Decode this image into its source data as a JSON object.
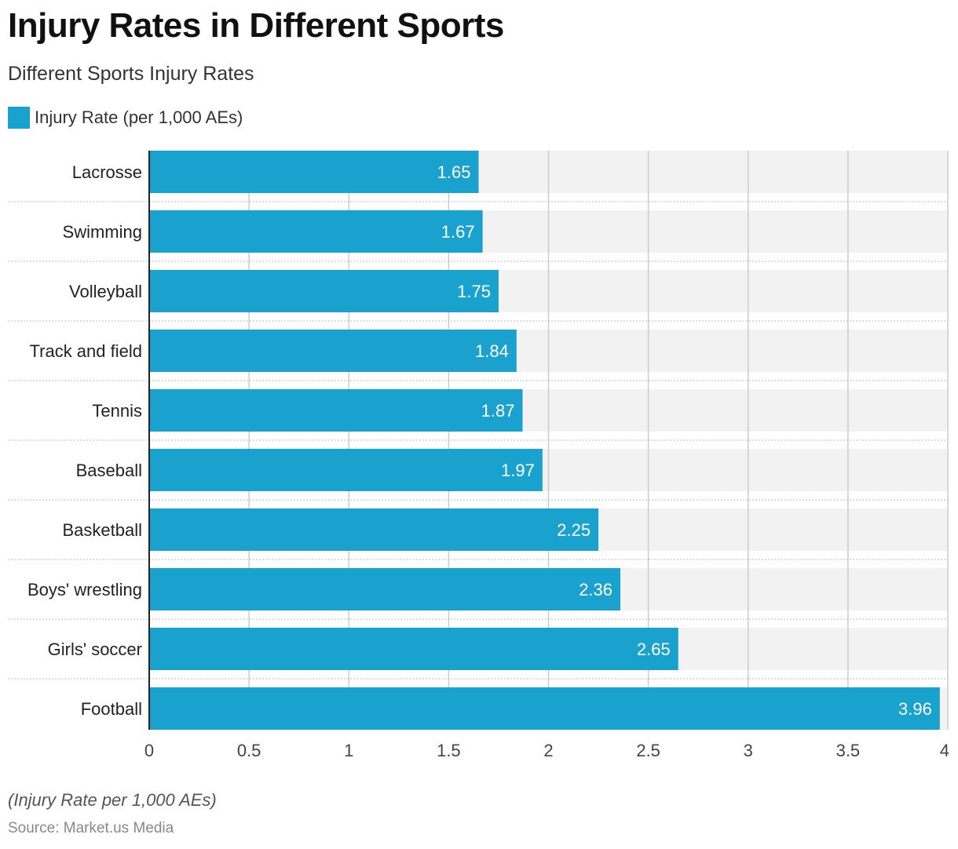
{
  "header": {
    "title": "Injury Rates in Different Sports",
    "subtitle": "Different Sports Injury Rates"
  },
  "legend": {
    "label": "Injury Rate (per 1,000 AEs)",
    "color": "#1aa2cf"
  },
  "footer": {
    "note": "(Injury Rate per 1,000 AEs)",
    "source": "Source: Market.us Media"
  },
  "colors": {
    "bar": "#1aa2cf",
    "track": "#f2f2f2",
    "grid": "#cccccc",
    "axis": "#222222"
  },
  "chart_data": {
    "type": "bar",
    "orientation": "horizontal",
    "categories": [
      "Lacrosse",
      "Swimming",
      "Volleyball",
      "Track and field",
      "Tennis",
      "Baseball",
      "Basketball",
      "Boys' wrestling",
      "Girls' soccer",
      "Football"
    ],
    "series": [
      {
        "name": "Injury Rate (per 1,000 AEs)",
        "values": [
          1.65,
          1.67,
          1.75,
          1.84,
          1.87,
          1.97,
          2.25,
          2.36,
          2.65,
          3.96
        ]
      }
    ],
    "value_labels": [
      "1.65",
      "1.67",
      "1.75",
      "1.84",
      "1.87",
      "1.97",
      "2.25",
      "2.36",
      "2.65",
      "3.96"
    ],
    "xlim": [
      0,
      4
    ],
    "xticks": [
      0,
      0.5,
      1,
      1.5,
      2,
      2.5,
      3,
      3.5,
      4
    ],
    "xtick_labels": [
      "0",
      "0.5",
      "1",
      "1.5",
      "2",
      "2.5",
      "3",
      "3.5",
      "4"
    ],
    "grid": true,
    "legend_position": "top-left"
  }
}
